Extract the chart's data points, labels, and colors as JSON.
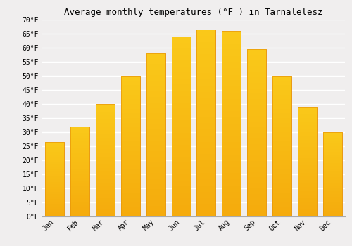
{
  "title": "Average monthly temperatures (°F ) in Tarnalelesz",
  "months": [
    "Jan",
    "Feb",
    "Mar",
    "Apr",
    "May",
    "Jun",
    "Jul",
    "Aug",
    "Sep",
    "Oct",
    "Nov",
    "Dec"
  ],
  "values": [
    26.5,
    32,
    40,
    50,
    58,
    64,
    66.5,
    66,
    59.5,
    50,
    39,
    30
  ],
  "bar_color_top": "#FDB827",
  "bar_color_bottom": "#F5A800",
  "bar_edge_color": "#E8960A",
  "ylim": [
    0,
    70
  ],
  "yticks": [
    0,
    5,
    10,
    15,
    20,
    25,
    30,
    35,
    40,
    45,
    50,
    55,
    60,
    65,
    70
  ],
  "ytick_labels": [
    "0°F",
    "5°F",
    "10°F",
    "15°F",
    "20°F",
    "25°F",
    "30°F",
    "35°F",
    "40°F",
    "45°F",
    "50°F",
    "55°F",
    "60°F",
    "65°F",
    "70°F"
  ],
  "title_fontsize": 9,
  "tick_fontsize": 7,
  "background_color": "#f0eeee",
  "grid_color": "#ffffff",
  "bar_width": 0.75
}
